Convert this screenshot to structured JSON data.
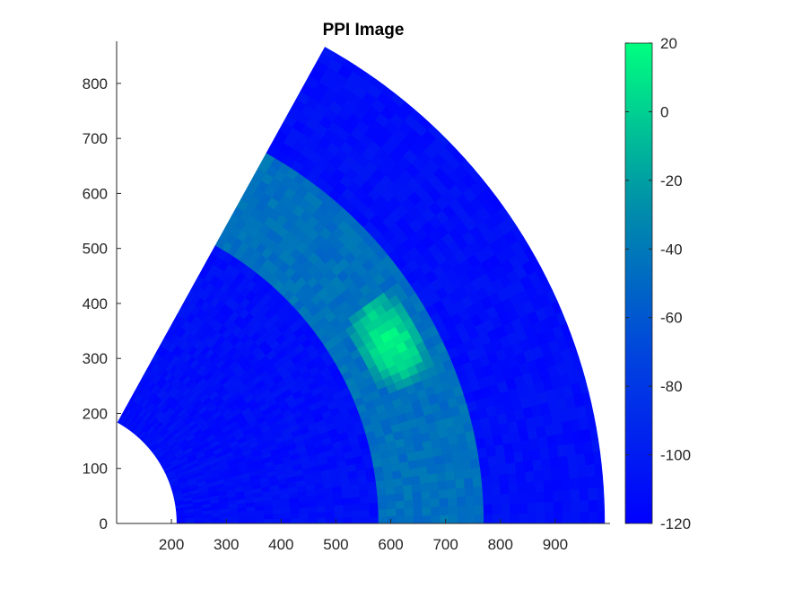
{
  "chart_data": {
    "type": "heatmap",
    "subtype": "ppi-sector",
    "title": "PPI Image",
    "xlabel": "",
    "ylabel": "",
    "xlim": [
      100,
      1000
    ],
    "ylim": [
      0,
      870
    ],
    "x_ticks": [
      200,
      300,
      400,
      500,
      600,
      700,
      800,
      900
    ],
    "y_ticks": [
      0,
      100,
      200,
      300,
      400,
      500,
      600,
      700,
      800
    ],
    "colorbar": {
      "range": [
        -120,
        20
      ],
      "ticks": [
        20,
        0,
        -20,
        -40,
        -60,
        -80,
        -100,
        -120
      ],
      "colors": [
        "#0000ff",
        "#0040e0",
        "#0090a8",
        "#00ff80"
      ]
    },
    "sector": {
      "origin": [
        0,
        0
      ],
      "r_inner": 210,
      "r_outer": 990,
      "angle_start_deg": 0,
      "angle_end_deg": 61
    },
    "bands": [
      {
        "r_from": 210,
        "r_to": 575,
        "value": -110
      },
      {
        "r_from": 575,
        "r_to": 770,
        "value": -45
      },
      {
        "r_from": 770,
        "r_to": 990,
        "value": -110
      }
    ],
    "hotspot": {
      "r_from": 630,
      "r_to": 740,
      "angle_from_deg": 22,
      "angle_to_deg": 36,
      "peak_value": 15
    },
    "colors": {
      "background": "#ffffff",
      "axis": "#262626"
    }
  }
}
